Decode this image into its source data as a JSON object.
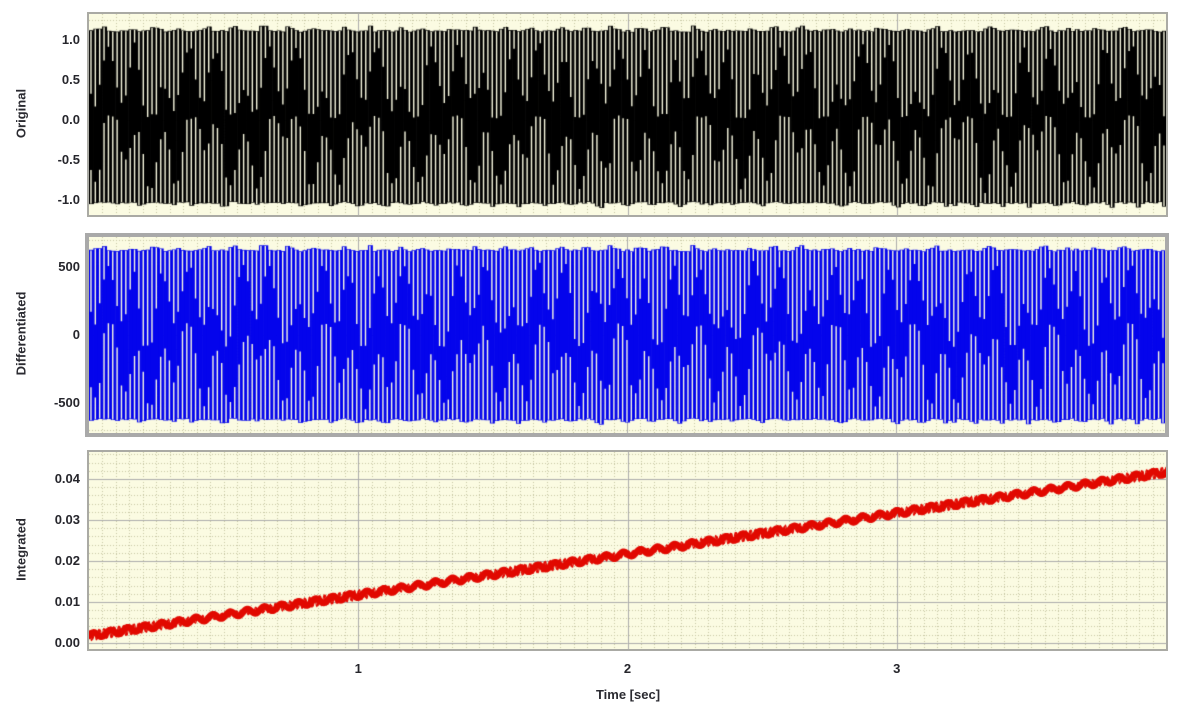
{
  "window": {
    "background": "#ffffff"
  },
  "palette": {
    "plot_bg": "#fbfbe2",
    "grid_minor": "#c6c6a2",
    "grid_major": "#acacac",
    "frame_thin": "#aaaaa4",
    "frame_thick": "#a9a9a9",
    "text": "#26262c"
  },
  "xaxis": {
    "label": "Time [sec]",
    "range": [
      0,
      4
    ],
    "tick_labels": [
      "1",
      "2",
      "3"
    ],
    "tick_values": [
      1,
      2,
      3
    ],
    "minor_step": 0.05
  },
  "chart_data": [
    {
      "type": "line",
      "name": "Original",
      "ylabel": "Original",
      "color": "#000000",
      "x_range": [
        0,
        4
      ],
      "ylim": [
        -1.19,
        1.32
      ],
      "ytick_labels": [
        "1.0",
        "0.5",
        "0.0",
        "-0.5",
        "-1.0"
      ],
      "ytick_values": [
        1.0,
        0.5,
        0.0,
        -0.5,
        -1.0
      ],
      "grid": {
        "x_minor": 0.05,
        "y_minor": 0.25
      },
      "signal": {
        "kind": "dense_oscillation",
        "description": "high-frequency sinusoid filling the axes, amplitude ~1 with beating envelope",
        "band_top": 1.12,
        "band_bottom": -1.05,
        "line_spacing_sec": 0.0162,
        "envelope_period_sec": 0.1,
        "slow_period_sec": 0.313,
        "max_gap_frac": 0.5
      }
    },
    {
      "type": "line",
      "name": "Differentiated",
      "ylabel": "Differentiated",
      "color": "#0404ec",
      "x_range": [
        0,
        4
      ],
      "ylim": [
        -720,
        720
      ],
      "ytick_labels": [
        "500",
        "0",
        "-500"
      ],
      "ytick_values": [
        500,
        0,
        -500
      ],
      "grid": {
        "x_minor": 0.05,
        "y_minor": 100
      },
      "signal": {
        "kind": "dense_oscillation",
        "description": "derivative of original, amplitude ~620 with beating envelope",
        "band_top": 628,
        "band_bottom": -628,
        "line_spacing_sec": 0.0162,
        "envelope_period_sec": 0.1,
        "slow_period_sec": 0.27,
        "max_gap_frac": 0.56
      }
    },
    {
      "type": "line",
      "name": "Integrated",
      "ylabel": "Integrated",
      "color": "#e10800",
      "x_range": [
        0,
        4
      ],
      "ylim": [
        -0.0015,
        0.0466
      ],
      "ytick_labels": [
        "0.04",
        "0.03",
        "0.02",
        "0.01",
        "0.00"
      ],
      "ytick_values": [
        0.04,
        0.03,
        0.02,
        0.01,
        0.0
      ],
      "grid": {
        "x_minor": 0.05,
        "y_minor": 0.002
      },
      "signal": {
        "kind": "noisy_ramp",
        "description": "integral ramp from ~0.0017 at t=0 to ~0.0417 at t=4 with dense ripple beads",
        "start_value": 0.0017,
        "end_value": 0.0417,
        "bead_freq_hz": 15.75,
        "bead_amplitude": 0.0007,
        "hair_freq_hz": 55,
        "hair_amplitude": 0.0013
      }
    }
  ]
}
